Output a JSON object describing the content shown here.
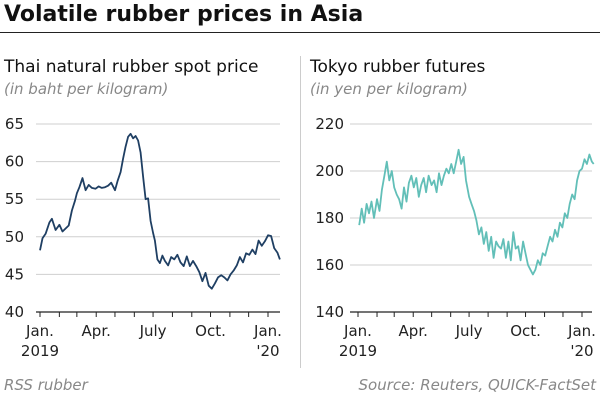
{
  "title": "Volatile rubber prices in Asia",
  "footer": {
    "left": "RSS rubber",
    "right": "Source: Reuters, QUICK-FactSet"
  },
  "chart_data": [
    {
      "type": "line",
      "title": "Thai natural rubber spot price",
      "subtitle": "(in baht per kilogram)",
      "color": "#1f3f63",
      "ylim": [
        40,
        65
      ],
      "yticks": [
        40,
        45,
        50,
        55,
        60,
        65
      ],
      "xlim": [
        "2019-01-01",
        "2020-01-25"
      ],
      "xtick_labels": [
        {
          "date": "2019-01-01",
          "lines": [
            "Jan.",
            "2019"
          ]
        },
        {
          "date": "2019-04-01",
          "lines": [
            "Apr.",
            ""
          ]
        },
        {
          "date": "2019-07-01",
          "lines": [
            "July",
            ""
          ]
        },
        {
          "date": "2019-10-01",
          "lines": [
            "Oct.",
            ""
          ]
        },
        {
          "date": "2020-01-01",
          "lines": [
            "Jan.",
            "'20"
          ]
        }
      ],
      "series": [
        {
          "x": [
            "2019-01-01",
            "2019-01-05",
            "2019-01-10",
            "2019-01-16",
            "2019-01-20",
            "2019-01-26",
            "2019-02-01",
            "2019-02-06",
            "2019-02-11",
            "2019-02-16",
            "2019-02-21",
            "2019-02-26",
            "2019-03-01",
            "2019-03-05",
            "2019-03-10",
            "2019-03-15",
            "2019-03-20",
            "2019-03-25",
            "2019-03-31",
            "2019-04-05",
            "2019-04-10",
            "2019-04-15",
            "2019-04-20",
            "2019-04-25",
            "2019-05-01",
            "2019-05-05",
            "2019-05-10",
            "2019-05-14",
            "2019-05-18",
            "2019-05-22",
            "2019-05-26",
            "2019-05-30",
            "2019-06-03",
            "2019-06-07",
            "2019-06-11",
            "2019-06-15",
            "2019-06-19",
            "2019-06-23",
            "2019-06-27",
            "2019-07-01",
            "2019-07-04",
            "2019-07-08",
            "2019-07-12",
            "2019-07-16",
            "2019-07-20",
            "2019-07-25",
            "2019-07-30",
            "2019-08-04",
            "2019-08-09",
            "2019-08-14",
            "2019-08-19",
            "2019-08-24",
            "2019-08-29",
            "2019-09-03",
            "2019-09-08",
            "2019-09-13",
            "2019-09-18",
            "2019-09-23",
            "2019-09-28",
            "2019-10-03",
            "2019-10-08",
            "2019-10-13",
            "2019-10-18",
            "2019-10-23",
            "2019-10-28",
            "2019-11-02",
            "2019-11-07",
            "2019-11-12",
            "2019-11-17",
            "2019-11-22",
            "2019-11-27",
            "2019-12-02",
            "2019-12-07",
            "2019-12-12",
            "2019-12-17",
            "2019-12-22",
            "2019-12-27",
            "2020-01-01",
            "2020-01-06",
            "2020-01-11",
            "2020-01-16",
            "2020-01-20"
          ],
          "y": [
            48.2,
            49.8,
            50.4,
            51.9,
            52.4,
            50.9,
            51.6,
            50.7,
            51.1,
            51.5,
            53.5,
            54.8,
            55.8,
            56.6,
            57.8,
            56.2,
            56.9,
            56.5,
            56.4,
            56.7,
            56.5,
            56.6,
            56.8,
            57.2,
            56.2,
            57.4,
            58.6,
            60.4,
            62.0,
            63.3,
            63.7,
            63.1,
            63.4,
            62.8,
            61.2,
            58.0,
            55.0,
            55.1,
            52.1,
            50.5,
            49.5,
            47.0,
            46.5,
            47.5,
            46.8,
            46.2,
            47.3,
            47.0,
            47.6,
            46.6,
            46.1,
            47.4,
            46.1,
            46.8,
            46.1,
            45.3,
            44.1,
            45.2,
            43.5,
            43.1,
            43.8,
            44.6,
            44.9,
            44.6,
            44.2,
            45.0,
            45.5,
            46.2,
            47.3,
            46.6,
            47.8,
            47.6,
            48.3,
            47.7,
            49.5,
            48.8,
            49.4,
            50.2,
            50.1,
            48.5,
            47.9,
            47.0
          ]
        }
      ]
    },
    {
      "type": "line",
      "title": "Tokyo rubber futures",
      "subtitle": "(in yen per kilogram)",
      "color": "#62bfb8",
      "ylim": [
        140,
        220
      ],
      "yticks": [
        140,
        160,
        180,
        200,
        220
      ],
      "xlim": [
        "2019-01-01",
        "2020-01-25"
      ],
      "xtick_labels": [
        {
          "date": "2019-01-01",
          "lines": [
            "Jan.",
            "2019"
          ]
        },
        {
          "date": "2019-04-01",
          "lines": [
            "Apr.",
            ""
          ]
        },
        {
          "date": "2019-07-01",
          "lines": [
            "July",
            ""
          ]
        },
        {
          "date": "2019-10-01",
          "lines": [
            "Oct.",
            ""
          ]
        },
        {
          "date": "2020-01-01",
          "lines": [
            "Jan.",
            "'20"
          ]
        }
      ],
      "series": [
        {
          "x": [
            "2019-01-03",
            "2019-01-07",
            "2019-01-11",
            "2019-01-15",
            "2019-01-19",
            "2019-01-23",
            "2019-01-27",
            "2019-02-01",
            "2019-02-05",
            "2019-02-09",
            "2019-02-13",
            "2019-02-17",
            "2019-02-21",
            "2019-02-25",
            "2019-03-01",
            "2019-03-05",
            "2019-03-09",
            "2019-03-13",
            "2019-03-17",
            "2019-03-21",
            "2019-03-25",
            "2019-03-29",
            "2019-04-02",
            "2019-04-06",
            "2019-04-10",
            "2019-04-14",
            "2019-04-18",
            "2019-04-22",
            "2019-04-26",
            "2019-05-01",
            "2019-05-05",
            "2019-05-09",
            "2019-05-13",
            "2019-05-17",
            "2019-05-21",
            "2019-05-25",
            "2019-05-29",
            "2019-06-02",
            "2019-06-06",
            "2019-06-10",
            "2019-06-14",
            "2019-06-18",
            "2019-06-22",
            "2019-06-26",
            "2019-07-01",
            "2019-07-05",
            "2019-07-09",
            "2019-07-13",
            "2019-07-17",
            "2019-07-21",
            "2019-07-25",
            "2019-07-29",
            "2019-08-02",
            "2019-08-06",
            "2019-08-10",
            "2019-08-14",
            "2019-08-18",
            "2019-08-22",
            "2019-08-26",
            "2019-08-30",
            "2019-09-03",
            "2019-09-07",
            "2019-09-11",
            "2019-09-15",
            "2019-09-19",
            "2019-09-23",
            "2019-09-27",
            "2019-10-01",
            "2019-10-05",
            "2019-10-09",
            "2019-10-13",
            "2019-10-17",
            "2019-10-21",
            "2019-10-25",
            "2019-10-29",
            "2019-11-02",
            "2019-11-06",
            "2019-11-10",
            "2019-11-14",
            "2019-11-18",
            "2019-11-22",
            "2019-11-26",
            "2019-11-30",
            "2019-12-04",
            "2019-12-08",
            "2019-12-12",
            "2019-12-16",
            "2019-12-20",
            "2019-12-24",
            "2019-12-28",
            "2020-01-01",
            "2020-01-05",
            "2020-01-09",
            "2020-01-13",
            "2020-01-17",
            "2020-01-20"
          ],
          "y": [
            177,
            184,
            178,
            186,
            182,
            187,
            180,
            188,
            183,
            192,
            198,
            204,
            196,
            200,
            193,
            190,
            188,
            184,
            193,
            187,
            195,
            198,
            193,
            197,
            189,
            194,
            197,
            191,
            198,
            194,
            196,
            191,
            199,
            194,
            198,
            201,
            199,
            203,
            199,
            204,
            209,
            203,
            206,
            196,
            189,
            186,
            183,
            179,
            173,
            176,
            169,
            174,
            166,
            172,
            163,
            170,
            168,
            167,
            171,
            163,
            170,
            162,
            174,
            167,
            168,
            162,
            170,
            165,
            160,
            158,
            156,
            158,
            162,
            160,
            165,
            164,
            168,
            172,
            170,
            175,
            172,
            178,
            176,
            182,
            180,
            186,
            190,
            188,
            196,
            200,
            201,
            205,
            203,
            207,
            204,
            203
          ]
        }
      ]
    }
  ]
}
